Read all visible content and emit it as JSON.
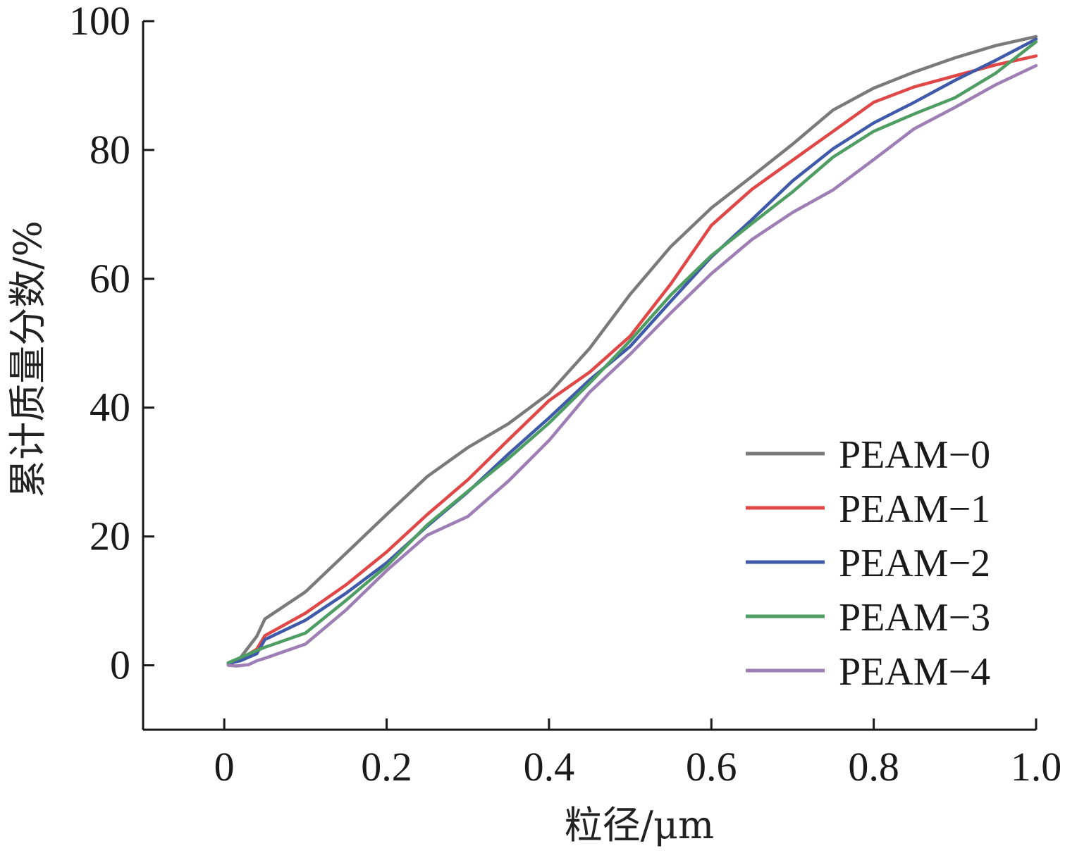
{
  "chart_data": {
    "type": "line",
    "xlabel": "粒径/μm",
    "ylabel": "累计质量分数/%",
    "xlim": [
      -0.1,
      1.0
    ],
    "ylim": [
      -10,
      100
    ],
    "xticks": [
      0,
      0.2,
      0.4,
      0.6,
      0.8,
      1.0
    ],
    "xtick_labels": [
      "0",
      "0.2",
      "0.4",
      "0.6",
      "0.8",
      "1.0"
    ],
    "yticks": [
      0,
      20,
      40,
      60,
      80,
      100
    ],
    "ytick_labels": [
      "0",
      "20",
      "40",
      "60",
      "80",
      "100"
    ],
    "grid": false,
    "legend_position": "bottom-right",
    "series": [
      {
        "name": "PEAM−0",
        "color": "#7a7a7a",
        "x": [
          0.005,
          0.02,
          0.04,
          0.05,
          0.1,
          0.15,
          0.2,
          0.25,
          0.3,
          0.35,
          0.4,
          0.45,
          0.5,
          0.55,
          0.6,
          0.65,
          0.7,
          0.75,
          0.8,
          0.85,
          0.9,
          0.95,
          1.0
        ],
        "y": [
          0.2,
          1.2,
          4.5,
          7.2,
          11.4,
          17.4,
          23.4,
          29.3,
          33.8,
          37.5,
          42.2,
          49.2,
          57.6,
          65.0,
          71.0,
          75.9,
          80.9,
          86.2,
          89.6,
          92.1,
          94.3,
          96.2,
          97.6
        ]
      },
      {
        "name": "PEAM−1",
        "color": "#e04747",
        "x": [
          0.005,
          0.02,
          0.04,
          0.05,
          0.1,
          0.15,
          0.2,
          0.25,
          0.3,
          0.35,
          0.4,
          0.45,
          0.5,
          0.55,
          0.6,
          0.65,
          0.7,
          0.75,
          0.8,
          0.85,
          0.9,
          0.95,
          1.0
        ],
        "y": [
          0.1,
          1.0,
          2.5,
          4.6,
          8.1,
          12.5,
          17.6,
          23.4,
          28.8,
          35.0,
          41.1,
          45.5,
          51.1,
          59.2,
          68.3,
          73.9,
          78.4,
          82.9,
          87.4,
          89.8,
          91.5,
          93.2,
          94.6
        ]
      },
      {
        "name": "PEAM−2",
        "color": "#3f5aa8",
        "x": [
          0.005,
          0.02,
          0.04,
          0.05,
          0.1,
          0.15,
          0.2,
          0.25,
          0.3,
          0.35,
          0.4,
          0.45,
          0.5,
          0.55,
          0.6,
          0.65,
          0.7,
          0.75,
          0.8,
          0.85,
          0.9,
          0.95,
          1.0
        ],
        "y": [
          0.3,
          0.7,
          1.8,
          4.0,
          7.0,
          11.2,
          15.9,
          21.6,
          26.9,
          32.8,
          38.4,
          44.3,
          49.5,
          56.5,
          63.4,
          69.2,
          75.2,
          80.2,
          84.2,
          87.4,
          90.8,
          93.9,
          97.2
        ]
      },
      {
        "name": "PEAM−3",
        "color": "#4e9e64",
        "x": [
          0.005,
          0.02,
          0.04,
          0.05,
          0.1,
          0.15,
          0.2,
          0.25,
          0.3,
          0.35,
          0.4,
          0.45,
          0.5,
          0.55,
          0.6,
          0.65,
          0.7,
          0.75,
          0.8,
          0.85,
          0.9,
          0.95,
          1.0
        ],
        "y": [
          0.4,
          1.2,
          2.3,
          2.8,
          5.0,
          10.1,
          15.4,
          21.8,
          27.0,
          32.1,
          37.6,
          43.8,
          50.4,
          57.5,
          63.6,
          68.6,
          73.5,
          78.9,
          82.9,
          85.6,
          88.1,
          91.9,
          96.8
        ]
      },
      {
        "name": "PEAM−4",
        "color": "#9e7fb5",
        "x": [
          0.005,
          0.015,
          0.03,
          0.04,
          0.05,
          0.1,
          0.15,
          0.2,
          0.25,
          0.3,
          0.35,
          0.4,
          0.45,
          0.5,
          0.55,
          0.6,
          0.65,
          0.7,
          0.75,
          0.8,
          0.85,
          0.9,
          0.95,
          1.0
        ],
        "y": [
          0.0,
          -0.1,
          0.1,
          0.7,
          1.1,
          3.3,
          8.6,
          14.7,
          20.2,
          23.1,
          28.6,
          34.9,
          42.4,
          48.3,
          54.7,
          60.8,
          66.1,
          70.3,
          73.8,
          78.5,
          83.3,
          86.6,
          90.1,
          93.1
        ]
      }
    ]
  }
}
